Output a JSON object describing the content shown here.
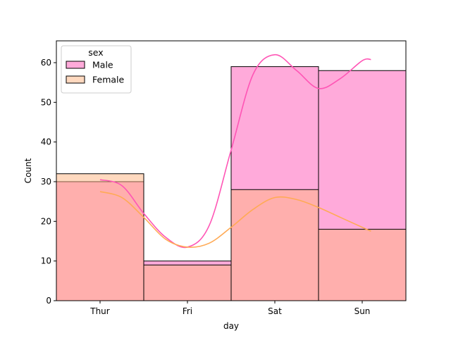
{
  "chart_data": {
    "type": "bar",
    "categories": [
      "Thur",
      "Fri",
      "Sat",
      "Sun"
    ],
    "series": [
      {
        "name": "Male",
        "values": [
          30,
          10,
          59,
          58
        ],
        "color": "#ff55b5",
        "kde_color": "#ff55b5"
      },
      {
        "name": "Female",
        "values": [
          32,
          9,
          28,
          18
        ],
        "color": "#ffb380",
        "kde_color": "#ffaa55"
      }
    ],
    "kde": [
      {
        "series": "Male",
        "x": [
          0,
          0.25,
          0.5,
          0.75,
          1,
          1.25,
          1.5,
          1.75,
          2,
          2.25,
          2.5,
          2.75,
          3,
          3.1
        ],
        "y": [
          30.5,
          29,
          22,
          16,
          13.5,
          19,
          38,
          57,
          62,
          58,
          53.5,
          56,
          60.5,
          60.8
        ]
      },
      {
        "series": "Female",
        "x": [
          0,
          0.25,
          0.5,
          0.75,
          1,
          1.25,
          1.5,
          1.75,
          2,
          2.25,
          2.5,
          2.75,
          3,
          3.1
        ],
        "y": [
          27.5,
          26,
          21,
          15.5,
          13.5,
          14.5,
          18.5,
          23,
          26,
          25.5,
          23.5,
          21,
          18.5,
          17.5
        ]
      }
    ],
    "legend": {
      "title": "sex",
      "placement": "top-left"
    },
    "xlabel": "day",
    "ylabel": "Count",
    "yticks": [
      0,
      10,
      20,
      30,
      40,
      50,
      60
    ],
    "ylim": [
      0,
      65.5
    ]
  }
}
